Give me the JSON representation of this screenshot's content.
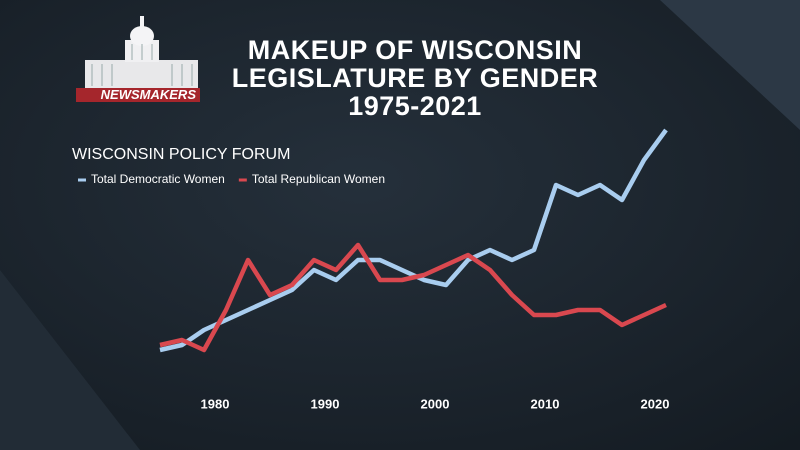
{
  "logo": {
    "text": "NEWSMAKERS"
  },
  "chart_data": {
    "type": "line",
    "title": [
      "MAKEUP OF WISCONSIN",
      "LEGISLATURE BY GENDER",
      "1975-2021"
    ],
    "subtitle": "WISCONSIN POLICY FORUM",
    "x": [
      1975,
      1977,
      1979,
      1981,
      1983,
      1985,
      1987,
      1989,
      1991,
      1993,
      1995,
      1997,
      1999,
      2001,
      2003,
      2005,
      2007,
      2009,
      2011,
      2013,
      2015,
      2017,
      2019,
      2021
    ],
    "series": [
      {
        "name": "Total Democratic Women",
        "color": "#a9cdef",
        "values": [
          10,
          11,
          14,
          16,
          18,
          20,
          22,
          26,
          24,
          28,
          28,
          26,
          24,
          23,
          28,
          30,
          28,
          30,
          43,
          41,
          43,
          40,
          48,
          54
        ]
      },
      {
        "name": "Total Republican Women",
        "color": "#d9484f",
        "values": [
          11,
          12,
          10,
          18,
          28,
          21,
          23,
          28,
          26,
          31,
          24,
          24,
          25,
          27,
          29,
          26,
          21,
          17,
          17,
          18,
          18,
          15,
          17,
          19
        ]
      }
    ],
    "xlim": [
      1975,
      2021
    ],
    "xticks": [
      1980,
      1990,
      2000,
      2010,
      2020
    ],
    "ylim": [
      0,
      60
    ],
    "legend": "top-left"
  }
}
